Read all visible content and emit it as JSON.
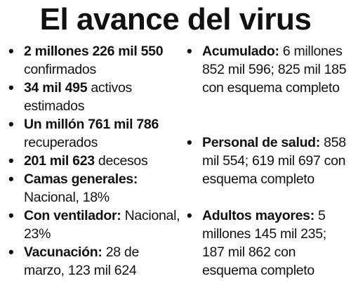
{
  "title": "El avance del virus",
  "bullet_char": "•",
  "left_items": [
    {
      "bold": "2 millones 226 mil 550",
      "text": " confirmados"
    },
    {
      "bold": "34 mil 495",
      "text": " activos estimados"
    },
    {
      "bold": "Un millón 761 mil 786",
      "text": " recuperados"
    },
    {
      "bold": "201 mil 623",
      "text": " decesos"
    },
    {
      "bold": "Camas generales:",
      "text": " Nacional, 18%"
    },
    {
      "bold": "Con ventilador:",
      "text": " Nacional, 23%"
    },
    {
      "bold": "Vacunación:",
      "text": " 28 de marzo, 123 mil 624"
    }
  ],
  "right_items": [
    {
      "bold": "Acumulado:",
      "text": " 6 millones 852 mil 596; 825 mil 185 con esquema completo"
    },
    {
      "bold": "Personal de salud:",
      "text": " 858 mil 554; 619 mil 697 con esquema completo"
    },
    {
      "bold": "Adultos mayores:",
      "text": " 5 millones 145 mil 235; 187 mil 862 con esquema completo"
    }
  ]
}
